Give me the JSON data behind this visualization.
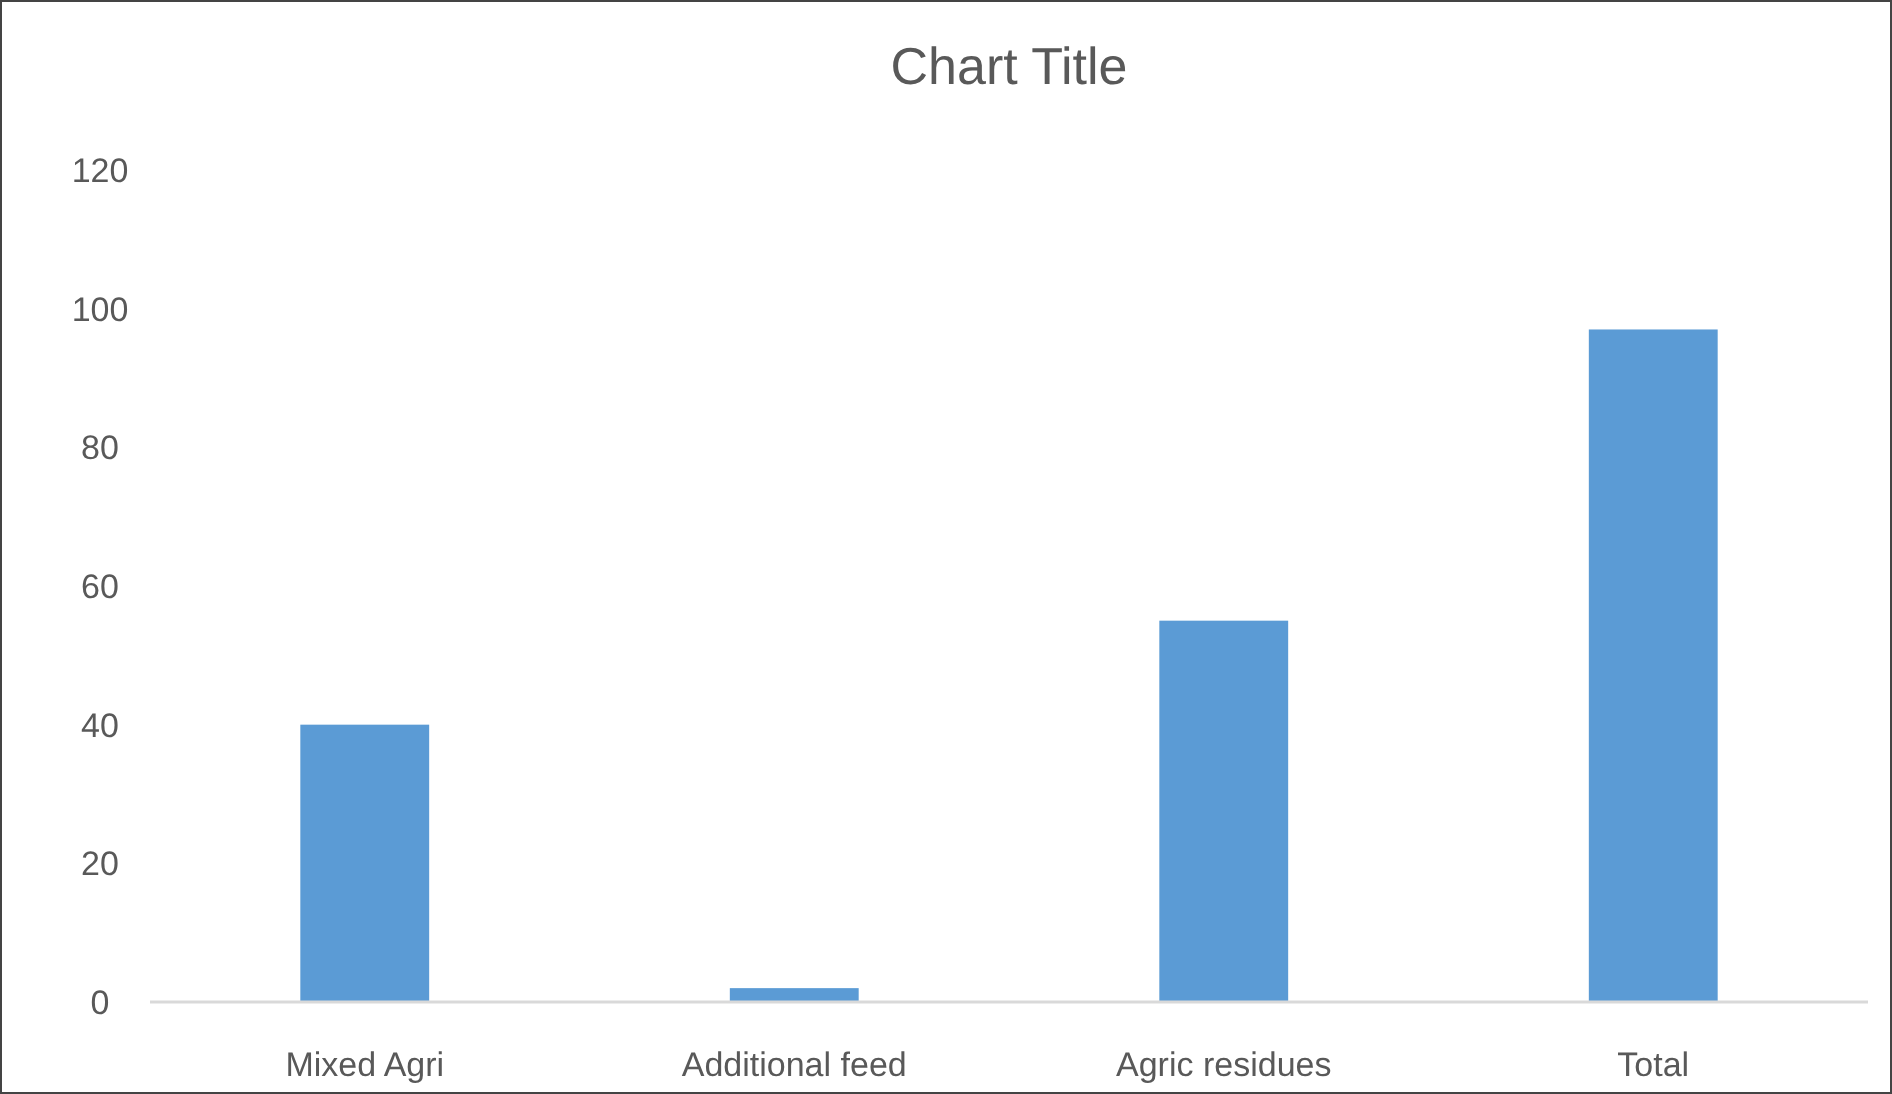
{
  "chart_data": {
    "type": "bar",
    "title": "Chart Title",
    "categories": [
      "Mixed Agri",
      "Additional feed",
      "Agric residues",
      "Total"
    ],
    "values": [
      40,
      2,
      55,
      97
    ],
    "color": "#5b9bd5",
    "ylim": [
      0,
      120
    ],
    "yticks": [
      0,
      20,
      40,
      60,
      80,
      100,
      120
    ]
  }
}
